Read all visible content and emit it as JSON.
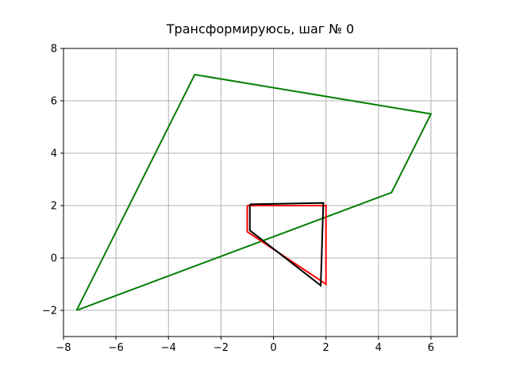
{
  "chart_data": {
    "type": "line",
    "title": "Трансформируюсь, шаг № 0",
    "xlabel": "",
    "ylabel": "",
    "xlim": [
      -8,
      7
    ],
    "ylim": [
      -3,
      8
    ],
    "xticks": [
      -8,
      -6,
      -4,
      -2,
      0,
      2,
      4,
      6
    ],
    "yticks": [
      -2,
      0,
      2,
      4,
      6,
      8
    ],
    "xtick_labels": [
      "−8",
      "−6",
      "−4",
      "−2",
      "0",
      "2",
      "4",
      "6"
    ],
    "ytick_labels": [
      "−2",
      "0",
      "2",
      "4",
      "6",
      "8"
    ],
    "grid": true,
    "series": [
      {
        "color": "#008000",
        "x": [
          -7.5,
          -3,
          6,
          4.5,
          -7.5
        ],
        "y": [
          -2,
          7,
          5.5,
          2.5,
          -2
        ]
      },
      {
        "color": "#ff0000",
        "x": [
          -1,
          2,
          2,
          -1,
          -1
        ],
        "y": [
          2,
          2,
          -1,
          1,
          2
        ]
      },
      {
        "color": "#000000",
        "x": [
          -0.9,
          1.9,
          1.8,
          -0.9,
          -0.9
        ],
        "y": [
          2.05,
          2.1,
          -1.05,
          1.05,
          2.05
        ]
      }
    ]
  }
}
